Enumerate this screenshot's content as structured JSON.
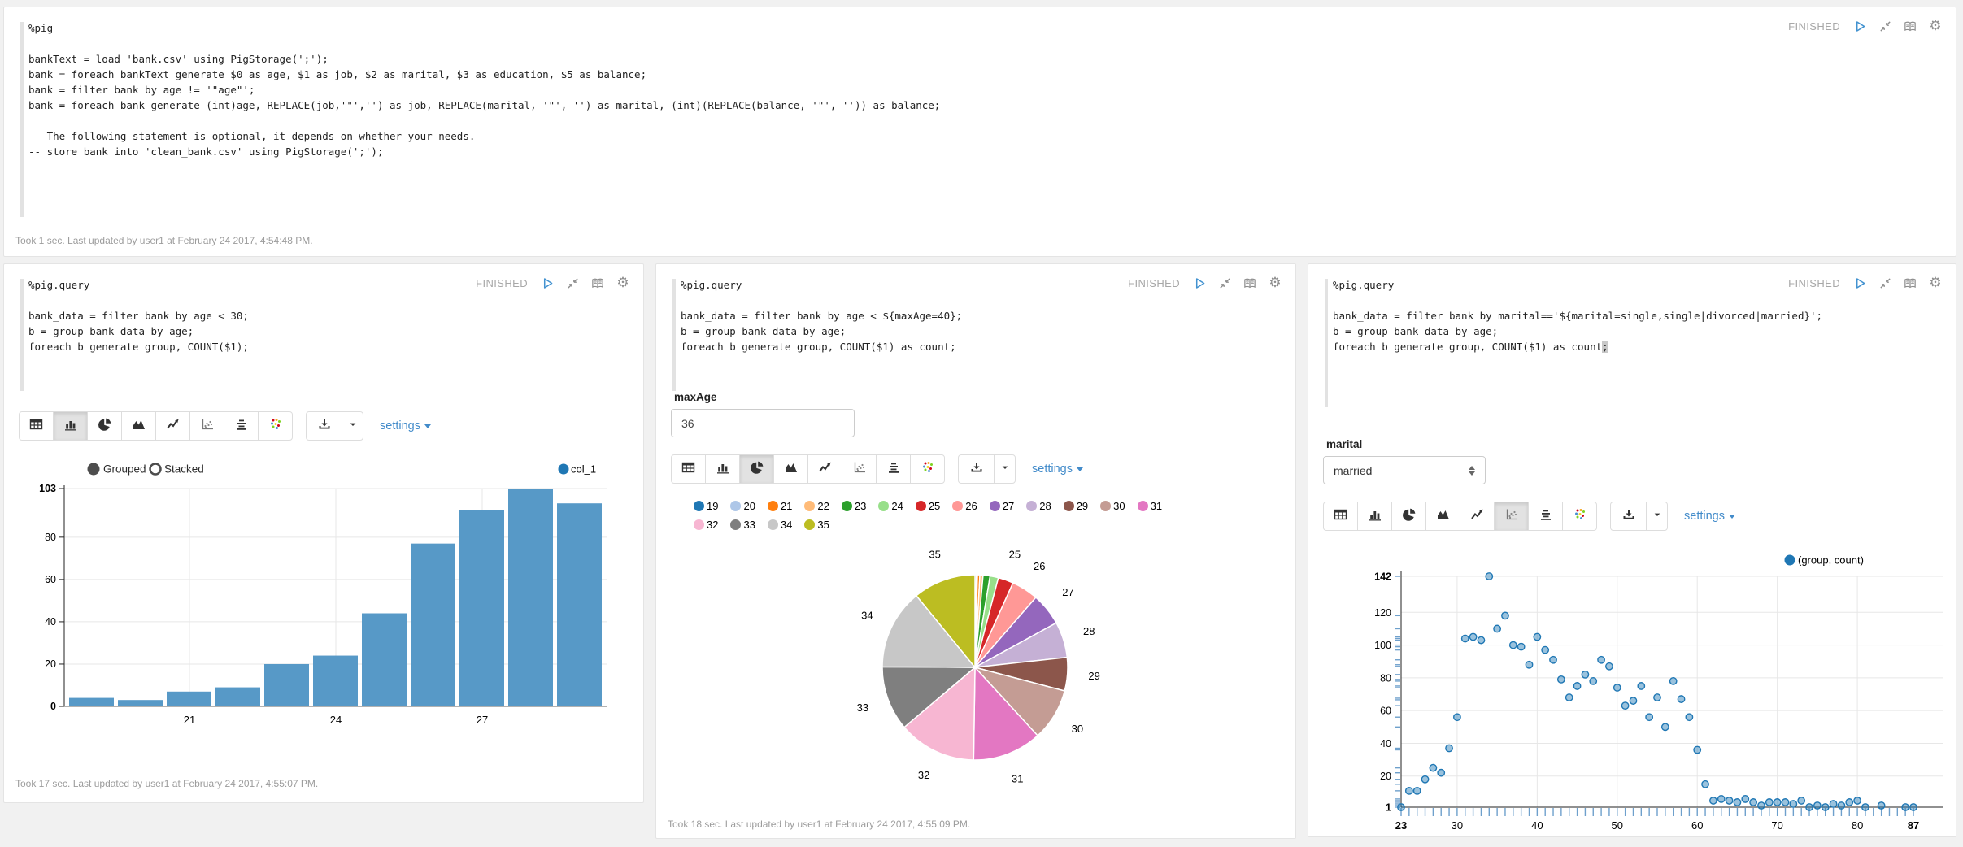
{
  "status_label": "FINISHED",
  "toolbar": {
    "settings_label": "settings",
    "chart_types": [
      "table",
      "bar-chart",
      "pie-chart",
      "area-chart",
      "line-chart",
      "scatter-chart",
      "stacked-chart",
      "bubble-chart"
    ],
    "download_label": "download"
  },
  "colors": {
    "accent_link": "#428bca",
    "bar_fill": "#5799c7",
    "point_stroke": "#1f77b4",
    "status_text": "#a8a8a8"
  },
  "paragraphs": {
    "pig": {
      "code_lines": [
        "%pig",
        "",
        "bankText = load 'bank.csv' using PigStorage(';');",
        "bank = foreach bankText generate $0 as age, $1 as job, $2 as marital, $3 as education, $5 as balance;",
        "bank = filter bank by age != '\"age\"';",
        "bank = foreach bank generate (int)age, REPLACE(job,'\"','') as job, REPLACE(marital, '\"', '') as marital, (int)(REPLACE(balance, '\"', '')) as balance;",
        "",
        "-- The following statement is optional, it depends on whether your needs.",
        "-- store bank into 'clean_bank.csv' using PigStorage(';');"
      ],
      "footer": "Took 1 sec. Last updated by user1 at February 24 2017, 4:54:48 PM."
    },
    "bar": {
      "code_lines": [
        "%pig.query",
        "",
        "bank_data = filter bank by age < 30;",
        "b = group bank_data by age;",
        "foreach b generate group, COUNT($1);"
      ],
      "selected_chart": 1,
      "radio_grouped": "Grouped",
      "radio_stacked": "Stacked",
      "legend_label": "col_1",
      "footer": "Took 17 sec. Last updated by user1 at February 24 2017, 4:55:07 PM."
    },
    "pie": {
      "code_lines": [
        "%pig.query",
        "",
        "bank_data = filter bank by age < ${maxAge=40};",
        "b = group bank_data by age;",
        "foreach b generate group, COUNT($1) as count;"
      ],
      "form_label": "maxAge",
      "form_value": "36",
      "selected_chart": 2,
      "footer": "Took 18 sec. Last updated by user1 at February 24 2017, 4:55:09 PM."
    },
    "scatter": {
      "code_lines": [
        "%pig.query",
        "",
        "bank_data = filter bank by marital=='${marital=single,single|divorced|married}';",
        "b = group bank_data by age;",
        "foreach b generate group, COUNT($1) as count;"
      ],
      "has_cursor": true,
      "form_label": "marital",
      "form_value": "married",
      "selected_chart": 5,
      "legend_label": "(group, count)"
    }
  },
  "chart_data": [
    {
      "id": "bar",
      "type": "bar",
      "title": "count by age (age < 30)",
      "series_label": "col_1",
      "categories": [
        19,
        20,
        21,
        22,
        23,
        24,
        25,
        26,
        27,
        28,
        29
      ],
      "values": [
        4,
        3,
        7,
        9,
        20,
        24,
        44,
        77,
        93,
        103,
        96
      ],
      "x_tick_labels": [
        "21",
        "24",
        "27"
      ],
      "x_tick_indices": [
        2,
        5,
        8
      ],
      "y_ticks": [
        0,
        20,
        40,
        60,
        80
      ],
      "y_max_label": "103",
      "ylim": [
        0,
        103
      ],
      "grid": true,
      "legend_position": "top-right",
      "bar_color": "#5799c7",
      "mode_options": [
        "Grouped",
        "Stacked"
      ],
      "mode_selected": "Grouped"
    },
    {
      "id": "pie",
      "type": "pie",
      "title": "count by age (age < 36)",
      "labels": [
        "19",
        "20",
        "21",
        "22",
        "23",
        "24",
        "25",
        "26",
        "27",
        "28",
        "29",
        "30",
        "31",
        "32",
        "33",
        "34",
        "35"
      ],
      "values": [
        4,
        3,
        7,
        9,
        20,
        24,
        44,
        77,
        93,
        103,
        96,
        150,
        199,
        224,
        186,
        231,
        180
      ],
      "colors": [
        "#1f77b4",
        "#aec7e8",
        "#ff7f0e",
        "#ffbb78",
        "#2ca02c",
        "#98df8a",
        "#d62728",
        "#ff9896",
        "#9467bd",
        "#c5b0d5",
        "#8c564b",
        "#c49c94",
        "#e377c2",
        "#f7b6d2",
        "#7f7f7f",
        "#c7c7c7",
        "#bcbd22"
      ],
      "slice_label_min_fraction": 0.024,
      "legend_position": "top"
    },
    {
      "id": "scatter",
      "type": "scatter",
      "title": "count by age (marital = married)",
      "series_label": "(group, count)",
      "points": [
        [
          23,
          1
        ],
        [
          24,
          11
        ],
        [
          25,
          11
        ],
        [
          26,
          18
        ],
        [
          27,
          25
        ],
        [
          28,
          22
        ],
        [
          29,
          37
        ],
        [
          30,
          56
        ],
        [
          31,
          104
        ],
        [
          32,
          105
        ],
        [
          33,
          103
        ],
        [
          34,
          142
        ],
        [
          35,
          110
        ],
        [
          36,
          118
        ],
        [
          37,
          100
        ],
        [
          38,
          99
        ],
        [
          39,
          88
        ],
        [
          40,
          105
        ],
        [
          41,
          97
        ],
        [
          42,
          91
        ],
        [
          43,
          79
        ],
        [
          44,
          68
        ],
        [
          45,
          75
        ],
        [
          46,
          82
        ],
        [
          47,
          78
        ],
        [
          48,
          91
        ],
        [
          49,
          87
        ],
        [
          50,
          74
        ],
        [
          51,
          63
        ],
        [
          52,
          66
        ],
        [
          53,
          75
        ],
        [
          54,
          56
        ],
        [
          55,
          68
        ],
        [
          56,
          50
        ],
        [
          57,
          78
        ],
        [
          58,
          67
        ],
        [
          59,
          56
        ],
        [
          60,
          36
        ],
        [
          61,
          15
        ],
        [
          62,
          5
        ],
        [
          63,
          6
        ],
        [
          64,
          5
        ],
        [
          65,
          4
        ],
        [
          66,
          6
        ],
        [
          67,
          4
        ],
        [
          68,
          2
        ],
        [
          69,
          4
        ],
        [
          70,
          4
        ],
        [
          71,
          4
        ],
        [
          72,
          3
        ],
        [
          73,
          5
        ],
        [
          74,
          1
        ],
        [
          75,
          2
        ],
        [
          76,
          1
        ],
        [
          77,
          3
        ],
        [
          78,
          2
        ],
        [
          79,
          4
        ],
        [
          80,
          5
        ],
        [
          81,
          1
        ],
        [
          83,
          2
        ],
        [
          86,
          1
        ],
        [
          87,
          1
        ]
      ],
      "x_ticks": [
        23,
        30,
        40,
        50,
        60,
        70,
        80,
        87
      ],
      "y_ticks": [
        1,
        20,
        40,
        60,
        80,
        100,
        120,
        142
      ],
      "xlim": [
        23,
        87
      ],
      "ylim": [
        1,
        142
      ],
      "grid": true,
      "legend_position": "top-right",
      "point_color": "#1f77b4"
    }
  ]
}
